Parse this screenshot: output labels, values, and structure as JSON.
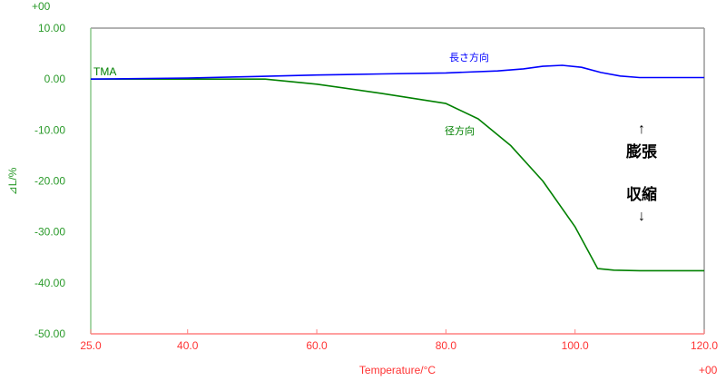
{
  "chart_data": {
    "type": "line",
    "xlabel": "Temperature/°C",
    "ylabel": "⊿L/%",
    "x_exponent_label": "+00",
    "y_exponent_label": "+00",
    "xlim": [
      25,
      120
    ],
    "ylim": [
      -50,
      10
    ],
    "x_ticks": [
      "25.0",
      "40.0",
      "60.0",
      "80.0",
      "100.0",
      "120.0"
    ],
    "x_tick_values": [
      25,
      40,
      60,
      80,
      100,
      120
    ],
    "y_ticks": [
      "10.00",
      "0.00",
      "-10.00",
      "-20.00",
      "-30.00",
      "-40.00",
      "-50.00"
    ],
    "y_tick_values": [
      10,
      0,
      -10,
      -20,
      -30,
      -40,
      -50
    ],
    "grid": false,
    "curve_label": "TMA",
    "annotations": {
      "expansion": "膨張",
      "shrinkage": "収縮",
      "up_arrow": "↑",
      "down_arrow": "↓"
    },
    "colors": {
      "x_axis": "#ff3333",
      "y_axis": "#2a9a2a"
    },
    "series": [
      {
        "name": "長さ方向",
        "color": "#0000ff",
        "x": [
          25,
          40,
          50,
          60,
          70,
          80,
          88,
          92,
          95,
          98,
          101,
          104,
          107,
          110,
          115,
          120
        ],
        "y": [
          0,
          0.2,
          0.5,
          0.8,
          1.0,
          1.2,
          1.6,
          2.0,
          2.5,
          2.7,
          2.3,
          1.3,
          0.6,
          0.3,
          0.3,
          0.3
        ]
      },
      {
        "name": "径方向",
        "color": "#008000",
        "x": [
          25,
          40,
          52,
          60,
          70,
          80,
          85,
          90,
          95,
          100,
          103.5,
          106,
          110,
          120
        ],
        "y": [
          0,
          0,
          0,
          -1.0,
          -2.8,
          -4.8,
          -7.8,
          -13,
          -20,
          -29,
          -37.2,
          -37.5,
          -37.6,
          -37.6
        ]
      }
    ]
  }
}
